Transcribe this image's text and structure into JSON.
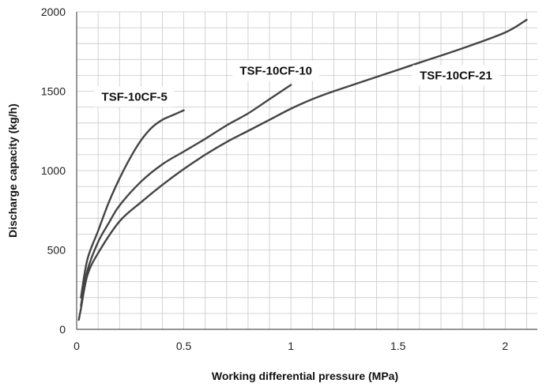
{
  "chart_data": {
    "type": "line",
    "title": "",
    "xlabel": "Working differential pressure (MPa)",
    "ylabel": "Discharge capacity (kg/h)",
    "xlim": [
      0,
      2.15
    ],
    "ylim": [
      0,
      2000
    ],
    "x_ticks": [
      0,
      0.5,
      1,
      1.5,
      2
    ],
    "x_tick_labels": [
      "0",
      "0.5",
      "1",
      "1.5",
      "2"
    ],
    "y_ticks": [
      0,
      500,
      1000,
      1500,
      2000
    ],
    "y_tick_labels": [
      "0",
      "500",
      "1000",
      "1500",
      "2000"
    ],
    "minor_x_step": 0.1,
    "minor_y_step": 100,
    "grid": true,
    "legend": "none (series labeled directly on the plot)",
    "colors": {
      "line": "#444444",
      "grid": "#c8c8c8",
      "axis": "#555555",
      "label_box": "#ffffff"
    },
    "series": [
      {
        "name": "TSF-10CF-5",
        "x": [
          0.02,
          0.05,
          0.1,
          0.15,
          0.2,
          0.25,
          0.3,
          0.35,
          0.4,
          0.45,
          0.5
        ],
        "y": [
          200,
          440,
          620,
          800,
          950,
          1080,
          1190,
          1270,
          1320,
          1350,
          1380
        ]
      },
      {
        "name": "TSF-10CF-10",
        "x": [
          0.02,
          0.05,
          0.1,
          0.15,
          0.2,
          0.3,
          0.4,
          0.5,
          0.6,
          0.7,
          0.8,
          0.9,
          1.0
        ],
        "y": [
          150,
          370,
          550,
          670,
          780,
          930,
          1040,
          1120,
          1200,
          1285,
          1360,
          1450,
          1540
        ]
      },
      {
        "name": "TSF-10CF-21",
        "x": [
          0.01,
          0.02,
          0.05,
          0.1,
          0.2,
          0.3,
          0.4,
          0.5,
          0.6,
          0.7,
          0.8,
          0.9,
          1.0,
          1.1,
          1.2,
          1.4,
          1.6,
          1.8,
          2.0,
          2.1
        ],
        "y": [
          60,
          130,
          340,
          480,
          680,
          800,
          910,
          1010,
          1100,
          1180,
          1250,
          1320,
          1390,
          1450,
          1500,
          1590,
          1680,
          1770,
          1870,
          1950
        ]
      }
    ],
    "series_label_positions": [
      {
        "series": "TSF-10CF-5",
        "x": 0.27,
        "y": 1465
      },
      {
        "series": "TSF-10CF-10",
        "x": 0.93,
        "y": 1630
      },
      {
        "series": "TSF-10CF-21",
        "x": 1.77,
        "y": 1600
      }
    ]
  }
}
